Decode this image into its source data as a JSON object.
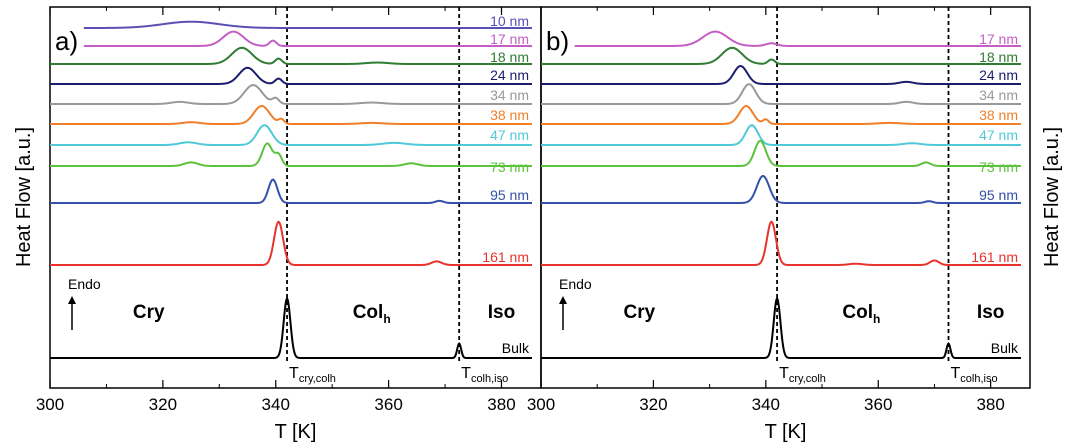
{
  "chart_data": [
    {
      "type": "line",
      "panel_label": "a)",
      "xlabel": "T [K]",
      "ylabel": "Heat Flow [a.u.]",
      "xlim": [
        300,
        387
      ],
      "xticks": [
        300,
        320,
        340,
        360,
        380
      ],
      "arrow_label": "Endo",
      "phase_labels": {
        "cry": "Cry",
        "colh_main": "Col",
        "colh_sub": "h",
        "iso": "Iso"
      },
      "transitions": [
        {
          "main": "T",
          "sub": "cry,colh",
          "x": 342.0
        },
        {
          "main": "T",
          "sub": "colh,iso",
          "x": 372.5
        }
      ],
      "series": [
        {
          "name": "10 nm",
          "color": "#5a4fb3",
          "xstart": 306,
          "level": 0,
          "peaks": [
            [
              325,
              0.35,
              5
            ]
          ]
        },
        {
          "name": "17 nm",
          "color": "#c45ec4",
          "xstart": 306,
          "level": 1,
          "peaks": [
            [
              332.5,
              0.8,
              1.8
            ],
            [
              339.5,
              0.3,
              0.6
            ]
          ]
        },
        {
          "name": "18 nm",
          "color": "#2e7d32",
          "xstart": 300,
          "level": 2,
          "peaks": [
            [
              334,
              0.9,
              1.8
            ],
            [
              340.5,
              0.3,
              0.6
            ],
            [
              358,
              0.08,
              2
            ]
          ]
        },
        {
          "name": "24 nm",
          "color": "#1c1c6e",
          "xstart": 300,
          "level": 3,
          "peaks": [
            [
              335,
              0.9,
              1.5
            ],
            [
              340.5,
              0.3,
              0.6
            ]
          ]
        },
        {
          "name": "34 nm",
          "color": "#999999",
          "xstart": 300,
          "level": 4,
          "peaks": [
            [
              323,
              0.12,
              1.5
            ],
            [
              336,
              1.05,
              1.6
            ],
            [
              340,
              0.3,
              0.6
            ],
            [
              357,
              0.08,
              2
            ]
          ]
        },
        {
          "name": "38 nm",
          "color": "#f07f2a",
          "xstart": 300,
          "level": 5,
          "peaks": [
            [
              325,
              0.1,
              1.5
            ],
            [
              337.5,
              1.0,
              1.4
            ],
            [
              341,
              0.25,
              0.5
            ],
            [
              357,
              0.06,
              2
            ]
          ]
        },
        {
          "name": "47 nm",
          "color": "#4fc8d8",
          "xstart": 300,
          "level": 6,
          "peaks": [
            [
              324.5,
              0.15,
              1.5
            ],
            [
              338,
              1.1,
              1.3
            ],
            [
              361,
              0.12,
              2
            ]
          ]
        },
        {
          "name": "73 nm",
          "color": "#5cc23e",
          "xstart": 300,
          "level": 7,
          "peaks": [
            [
              325,
              0.2,
              1.2
            ],
            [
              338.5,
              1.25,
              0.9
            ],
            [
              340.5,
              0.6,
              0.6
            ],
            [
              364,
              0.15,
              1.2
            ]
          ]
        },
        {
          "name": "95 nm",
          "color": "#3450a8",
          "xstart": 300,
          "level": 8,
          "peaks": [
            [
              339.5,
              1.3,
              0.8
            ],
            [
              369,
              0.12,
              0.7
            ]
          ]
        },
        {
          "name": "161 nm",
          "color": "#e8332d",
          "xstart": 300,
          "level": 9,
          "peaks": [
            [
              340.5,
              2.4,
              0.8
            ],
            [
              368.5,
              0.2,
              0.9
            ]
          ]
        },
        {
          "name": "Bulk",
          "color": "#000000",
          "xstart": 300,
          "level": 10,
          "peaks": [
            [
              342,
              3.3,
              0.6
            ],
            [
              372.5,
              0.8,
              0.35
            ]
          ]
        }
      ]
    },
    {
      "type": "line",
      "panel_label": "b)",
      "xlabel": "T [K]",
      "ylabel": "Heat Flow [a.u.]",
      "xlim": [
        300,
        387
      ],
      "xticks": [
        300,
        320,
        340,
        360,
        380
      ],
      "arrow_label": "Endo",
      "phase_labels": {
        "cry": "Cry",
        "colh_main": "Col",
        "colh_sub": "h",
        "iso": "Iso"
      },
      "transitions": [
        {
          "main": "T",
          "sub": "cry,colh",
          "x": 342.0
        },
        {
          "main": "T",
          "sub": "colh,iso",
          "x": 372.5
        }
      ],
      "series": [
        {
          "name": "17 nm",
          "color": "#c45ec4",
          "xstart": 306,
          "level": 1,
          "peaks": [
            [
              331,
              0.8,
              2.2
            ],
            [
              341,
              0.15,
              1
            ]
          ]
        },
        {
          "name": "18 nm",
          "color": "#2e7d32",
          "xstart": 300,
          "level": 2,
          "peaks": [
            [
              334,
              0.9,
              1.8
            ],
            [
              341,
              0.25,
              0.6
            ]
          ]
        },
        {
          "name": "24 nm",
          "color": "#1c1c6e",
          "xstart": 300,
          "level": 3,
          "peaks": [
            [
              335.5,
              1.0,
              1.2
            ],
            [
              365,
              0.12,
              1.2
            ]
          ]
        },
        {
          "name": "34 nm",
          "color": "#999999",
          "xstart": 300,
          "level": 4,
          "peaks": [
            [
              337,
              1.1,
              1.2
            ],
            [
              365,
              0.12,
              1.2
            ]
          ]
        },
        {
          "name": "38 nm",
          "color": "#f07f2a",
          "xstart": 300,
          "level": 5,
          "peaks": [
            [
              336.5,
              1.0,
              1.2
            ],
            [
              340,
              0.25,
              0.5
            ],
            [
              362,
              0.06,
              2
            ]
          ]
        },
        {
          "name": "47 nm",
          "color": "#4fc8d8",
          "xstart": 300,
          "level": 6,
          "peaks": [
            [
              337.5,
              1.1,
              1.1
            ],
            [
              366,
              0.1,
              1.5
            ]
          ]
        },
        {
          "name": "73 nm",
          "color": "#5cc23e",
          "xstart": 300,
          "level": 7,
          "peaks": [
            [
              339,
              1.4,
              1.0
            ],
            [
              368.5,
              0.2,
              0.8
            ]
          ]
        },
        {
          "name": "95 nm",
          "color": "#3450a8",
          "xstart": 300,
          "level": 8,
          "peaks": [
            [
              339.5,
              1.5,
              1.1
            ],
            [
              369,
              0.1,
              0.7
            ]
          ]
        },
        {
          "name": "161 nm",
          "color": "#e8332d",
          "xstart": 300,
          "level": 9,
          "peaks": [
            [
              341,
              2.4,
              0.8
            ],
            [
              356,
              0.07,
              1.2
            ],
            [
              370,
              0.25,
              0.8
            ]
          ]
        },
        {
          "name": "Bulk",
          "color": "#000000",
          "xstart": 300,
          "level": 10,
          "peaks": [
            [
              342,
              3.3,
              0.6
            ],
            [
              372.5,
              0.8,
              0.35
            ]
          ]
        }
      ]
    }
  ]
}
